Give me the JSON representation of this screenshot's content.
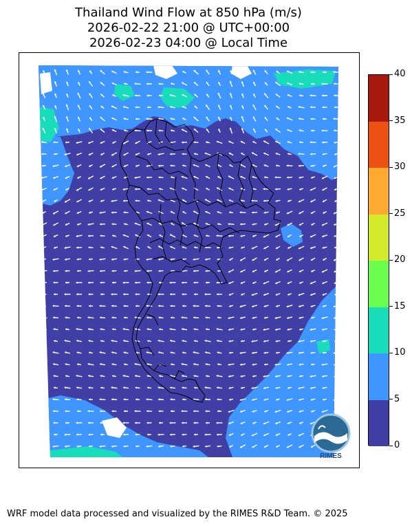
{
  "title": {
    "line1": "Thailand Wind Flow at 850 hPa (m/s)",
    "line2": "2026-02-22 21:00 @ UTC+00:00",
    "line3": "2026-02-23 04:00 @ Local Time"
  },
  "colorbar": {
    "levels": [
      "0",
      "5",
      "10",
      "15",
      "20",
      "25",
      "30",
      "35",
      "40"
    ],
    "colors": [
      "#3f3fa6",
      "#3f96fe",
      "#19dcba",
      "#6afe4e",
      "#d4e92a",
      "#fea931",
      "#ee5212",
      "#a8180c"
    ]
  },
  "colors": {
    "land_outline": "#000000",
    "arrow": "#ffffff",
    "missing": "#ffffff"
  },
  "logo": {
    "text": "RIMES"
  },
  "footer": "WRF model data processed and visualized by the RIMES R&D Team. © 2025"
}
